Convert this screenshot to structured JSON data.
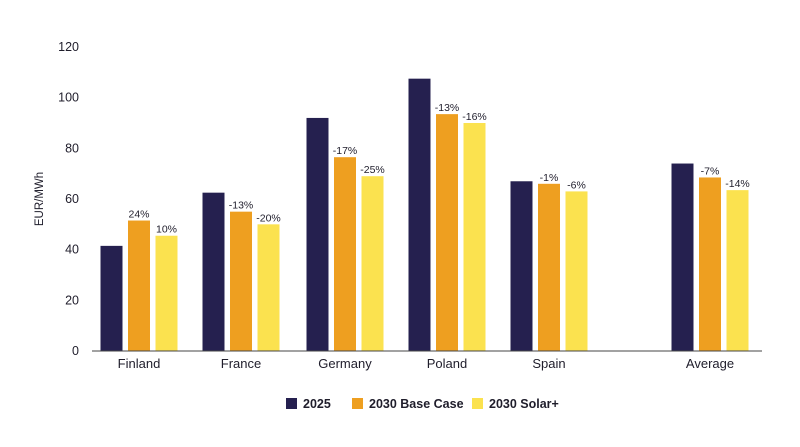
{
  "chart_data": {
    "type": "bar",
    "title": "",
    "xlabel": "",
    "ylabel": "EUR/MWh",
    "ylim": [
      0,
      120
    ],
    "yticks": [
      0,
      20,
      40,
      60,
      80,
      100,
      120
    ],
    "grid": false,
    "legend_position": "bottom",
    "categories": [
      "Finland",
      "France",
      "Germany",
      "Poland",
      "Spain",
      "Average"
    ],
    "series": [
      {
        "name": "2025",
        "color": "#25204f",
        "values": [
          41.5,
          62.5,
          92,
          107.5,
          67,
          74
        ],
        "labels": [
          "",
          "",
          "",
          "",
          "",
          ""
        ]
      },
      {
        "name": "2030 Base Case",
        "color": "#ee9f20",
        "values": [
          51.5,
          55,
          76.5,
          93.5,
          66,
          68.5
        ],
        "labels": [
          "24%",
          "-13%",
          "-17%",
          "-13%",
          "-1%",
          "-7%"
        ]
      },
      {
        "name": "2030 Solar+",
        "color": "#fbe24f",
        "values": [
          45.5,
          50,
          69,
          90,
          63,
          63.5
        ],
        "labels": [
          "10%",
          "-20%",
          "-25%",
          "-16%",
          "-6%",
          "-14%"
        ]
      }
    ]
  }
}
